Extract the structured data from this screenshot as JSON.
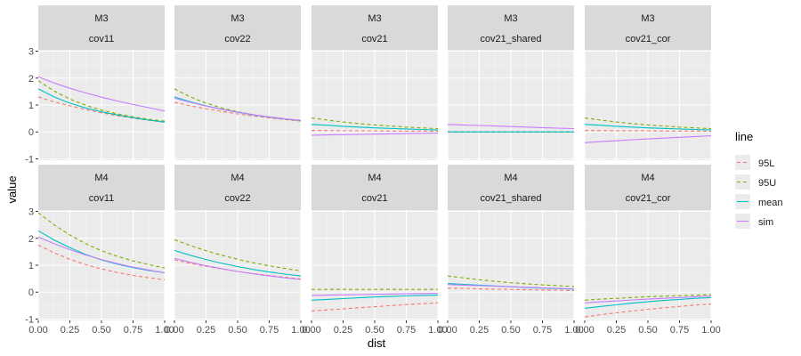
{
  "chart_data": {
    "type": "line",
    "xlabel": "dist",
    "ylabel": "value",
    "xlim": [
      0,
      1
    ],
    "ylim": [
      -1.05,
      3.05
    ],
    "x_ticks": [
      "0.00",
      "0.25",
      "0.50",
      "0.75",
      "1.00"
    ],
    "y_ticks": [
      "-1",
      "0",
      "1",
      "2",
      "3"
    ],
    "grid": true,
    "legend": {
      "title": "line",
      "position": "right",
      "entries": [
        {
          "name": "95L",
          "color": "#F8766D",
          "dashed": true
        },
        {
          "name": "95U",
          "color": "#7CAE00",
          "dashed": true
        },
        {
          "name": "mean",
          "color": "#00BFC4",
          "dashed": false
        },
        {
          "name": "sim",
          "color": "#C77CFF",
          "dashed": false
        }
      ]
    },
    "x": [
      0,
      0.125,
      0.25,
      0.375,
      0.5,
      0.625,
      0.75,
      0.875,
      1
    ],
    "panels": [
      {
        "row": "M3",
        "col": "cov11",
        "series": [
          {
            "name": "95L",
            "values": [
              1.3,
              1.12,
              0.97,
              0.83,
              0.71,
              0.6,
              0.51,
              0.43,
              0.36
            ]
          },
          {
            "name": "95U",
            "values": [
              1.9,
              1.52,
              1.22,
              0.99,
              0.81,
              0.67,
              0.56,
              0.47,
              0.4
            ]
          },
          {
            "name": "mean",
            "values": [
              1.6,
              1.3,
              1.07,
              0.89,
              0.75,
              0.63,
              0.53,
              0.44,
              0.37
            ]
          },
          {
            "name": "sim",
            "values": [
              2.05,
              1.82,
              1.62,
              1.45,
              1.29,
              1.15,
              1.02,
              0.9,
              0.78
            ]
          }
        ]
      },
      {
        "row": "M3",
        "col": "cov22",
        "series": [
          {
            "name": "95L",
            "values": [
              1.1,
              0.97,
              0.86,
              0.76,
              0.67,
              0.59,
              0.52,
              0.46,
              0.4
            ]
          },
          {
            "name": "95U",
            "values": [
              1.6,
              1.3,
              1.07,
              0.89,
              0.75,
              0.64,
              0.55,
              0.48,
              0.42
            ]
          },
          {
            "name": "mean",
            "values": [
              1.3,
              1.12,
              0.97,
              0.84,
              0.73,
              0.63,
              0.55,
              0.48,
              0.42
            ]
          },
          {
            "name": "sim",
            "values": [
              1.25,
              1.1,
              0.96,
              0.84,
              0.74,
              0.64,
              0.56,
              0.49,
              0.43
            ]
          }
        ]
      },
      {
        "row": "M3",
        "col": "cov21",
        "series": [
          {
            "name": "95L",
            "values": [
              0.05,
              0.05,
              0.04,
              0.04,
              0.04,
              0.03,
              0.03,
              0.03,
              0.02
            ]
          },
          {
            "name": "95U",
            "values": [
              0.52,
              0.44,
              0.37,
              0.31,
              0.26,
              0.22,
              0.18,
              0.15,
              0.12
            ]
          },
          {
            "name": "mean",
            "values": [
              0.28,
              0.25,
              0.21,
              0.18,
              0.15,
              0.13,
              0.11,
              0.09,
              0.07
            ]
          },
          {
            "name": "sim",
            "values": [
              -0.12,
              -0.11,
              -0.1,
              -0.09,
              -0.08,
              -0.07,
              -0.06,
              -0.05,
              -0.04
            ]
          }
        ]
      },
      {
        "row": "M3",
        "col": "cov21_shared",
        "series": [
          {
            "name": "95L",
            "values": [
              0,
              0,
              0,
              0,
              0,
              0,
              0,
              0,
              0
            ]
          },
          {
            "name": "95U",
            "values": [
              0,
              0,
              0,
              0,
              0,
              0,
              0,
              0,
              0
            ]
          },
          {
            "name": "mean",
            "values": [
              0,
              0,
              0,
              0,
              0,
              0,
              0,
              0,
              0
            ]
          },
          {
            "name": "sim",
            "values": [
              0.28,
              0.26,
              0.24,
              0.22,
              0.2,
              0.18,
              0.16,
              0.14,
              0.12
            ]
          }
        ]
      },
      {
        "row": "M3",
        "col": "cov21_cor",
        "series": [
          {
            "name": "95L",
            "values": [
              0.05,
              0.05,
              0.04,
              0.04,
              0.04,
              0.03,
              0.03,
              0.03,
              0.02
            ]
          },
          {
            "name": "95U",
            "values": [
              0.52,
              0.44,
              0.37,
              0.31,
              0.26,
              0.22,
              0.18,
              0.15,
              0.12
            ]
          },
          {
            "name": "mean",
            "values": [
              0.28,
              0.25,
              0.21,
              0.18,
              0.15,
              0.13,
              0.11,
              0.09,
              0.07
            ]
          },
          {
            "name": "sim",
            "values": [
              -0.4,
              -0.36,
              -0.33,
              -0.29,
              -0.26,
              -0.23,
              -0.2,
              -0.17,
              -0.14
            ]
          }
        ]
      },
      {
        "row": "M4",
        "col": "cov11",
        "series": [
          {
            "name": "95L",
            "values": [
              1.75,
              1.46,
              1.22,
              1.02,
              0.86,
              0.73,
              0.62,
              0.53,
              0.46
            ]
          },
          {
            "name": "95U",
            "values": [
              2.95,
              2.5,
              2.12,
              1.8,
              1.54,
              1.33,
              1.16,
              1.02,
              0.9
            ]
          },
          {
            "name": "mean",
            "values": [
              2.28,
              1.94,
              1.65,
              1.4,
              1.2,
              1.04,
              0.91,
              0.8,
              0.72
            ]
          },
          {
            "name": "sim",
            "values": [
              2.05,
              1.8,
              1.58,
              1.38,
              1.21,
              1.06,
              0.93,
              0.82,
              0.72
            ]
          }
        ]
      },
      {
        "row": "M4",
        "col": "cov22",
        "series": [
          {
            "name": "95L",
            "values": [
              1.2,
              1.07,
              0.96,
              0.86,
              0.77,
              0.69,
              0.62,
              0.55,
              0.49
            ]
          },
          {
            "name": "95U",
            "values": [
              1.95,
              1.73,
              1.54,
              1.37,
              1.22,
              1.09,
              0.98,
              0.88,
              0.79
            ]
          },
          {
            "name": "mean",
            "values": [
              1.55,
              1.37,
              1.21,
              1.07,
              0.95,
              0.84,
              0.75,
              0.67,
              0.6
            ]
          },
          {
            "name": "sim",
            "values": [
              1.25,
              1.11,
              0.98,
              0.87,
              0.77,
              0.68,
              0.6,
              0.53,
              0.47
            ]
          }
        ]
      },
      {
        "row": "M4",
        "col": "cov21",
        "series": [
          {
            "name": "95L",
            "values": [
              -0.7,
              -0.66,
              -0.62,
              -0.58,
              -0.54,
              -0.5,
              -0.46,
              -0.43,
              -0.4
            ]
          },
          {
            "name": "95U",
            "values": [
              0.1,
              0.1,
              0.1,
              0.1,
              0.1,
              0.1,
              0.1,
              0.1,
              0.1
            ]
          },
          {
            "name": "mean",
            "values": [
              -0.3,
              -0.27,
              -0.24,
              -0.21,
              -0.18,
              -0.16,
              -0.14,
              -0.12,
              -0.11
            ]
          },
          {
            "name": "sim",
            "values": [
              -0.12,
              -0.11,
              -0.1,
              -0.09,
              -0.08,
              -0.07,
              -0.06,
              -0.05,
              -0.04
            ]
          }
        ]
      },
      {
        "row": "M4",
        "col": "cov21_shared",
        "series": [
          {
            "name": "95L",
            "values": [
              0.15,
              0.14,
              0.12,
              0.11,
              0.1,
              0.09,
              0.08,
              0.07,
              0.06
            ]
          },
          {
            "name": "95U",
            "values": [
              0.6,
              0.53,
              0.46,
              0.4,
              0.35,
              0.31,
              0.27,
              0.24,
              0.21
            ]
          },
          {
            "name": "mean",
            "values": [
              0.32,
              0.29,
              0.26,
              0.23,
              0.2,
              0.17,
              0.15,
              0.13,
              0.11
            ]
          },
          {
            "name": "sim",
            "values": [
              0.28,
              0.26,
              0.24,
              0.22,
              0.2,
              0.18,
              0.16,
              0.14,
              0.12
            ]
          }
        ]
      },
      {
        "row": "M4",
        "col": "cov21_cor",
        "series": [
          {
            "name": "95L",
            "values": [
              -0.92,
              -0.84,
              -0.77,
              -0.7,
              -0.64,
              -0.58,
              -0.53,
              -0.48,
              -0.44
            ]
          },
          {
            "name": "95U",
            "values": [
              -0.3,
              -0.26,
              -0.23,
              -0.2,
              -0.17,
              -0.15,
              -0.13,
              -0.11,
              -0.09
            ]
          },
          {
            "name": "mean",
            "values": [
              -0.6,
              -0.53,
              -0.47,
              -0.41,
              -0.36,
              -0.31,
              -0.27,
              -0.23,
              -0.2
            ]
          },
          {
            "name": "sim",
            "values": [
              -0.4,
              -0.36,
              -0.33,
              -0.29,
              -0.26,
              -0.23,
              -0.2,
              -0.17,
              -0.14
            ]
          }
        ]
      }
    ]
  }
}
